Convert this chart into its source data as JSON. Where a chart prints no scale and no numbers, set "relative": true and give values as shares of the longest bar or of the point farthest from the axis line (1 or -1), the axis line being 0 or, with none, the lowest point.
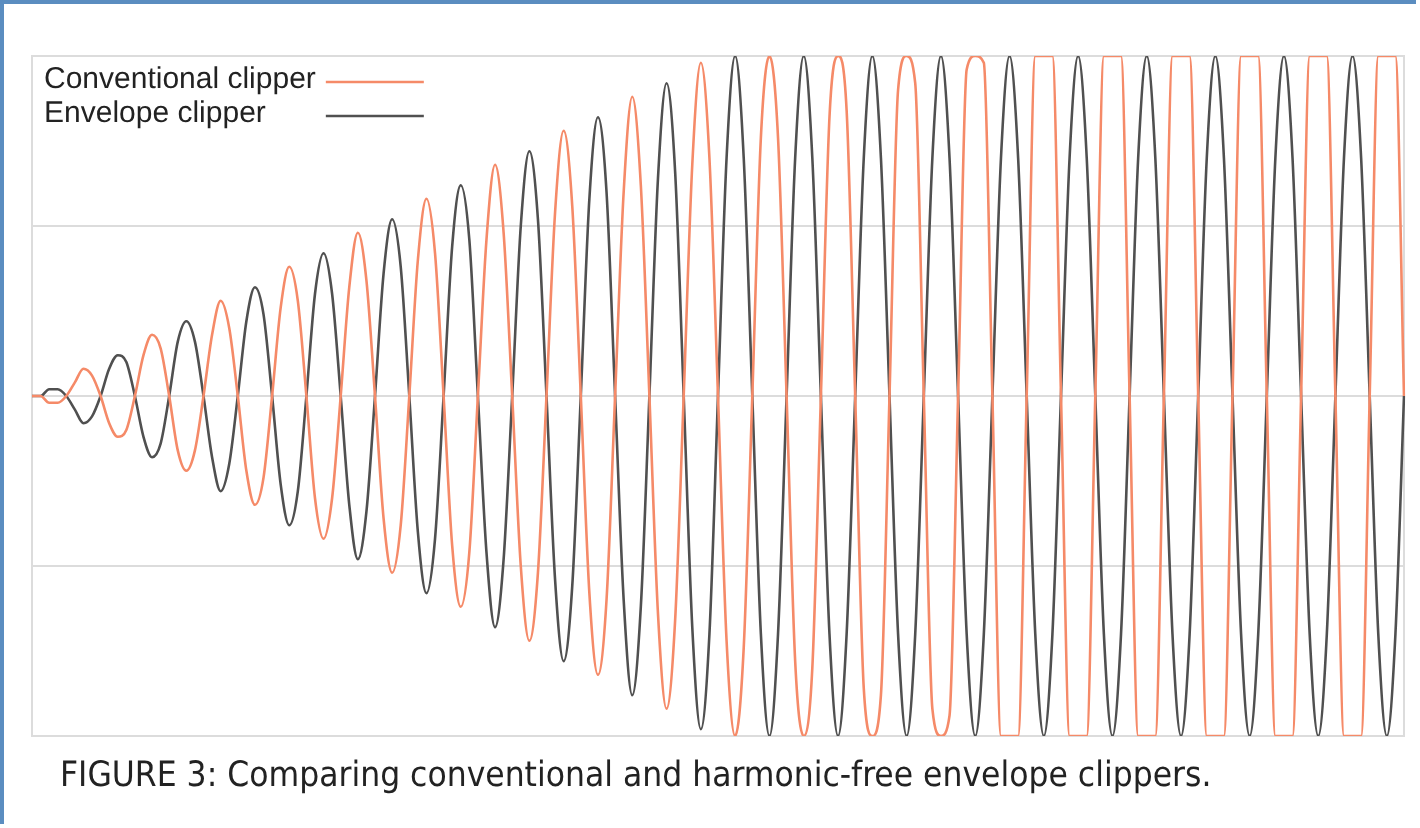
{
  "chart_data": {
    "type": "line",
    "relative": true,
    "grid": "y",
    "legend": "top left",
    "tick_labels": false,
    "marker": "none",
    "line_style": "solid",
    "annotations": [
      "FIGURE 3: Comparing conventional and harmonic-free envelope clippers."
    ],
    "categories": [
      null,
      null,
      null,
      null,
      null,
      null,
      null,
      null,
      null,
      null,
      null,
      null,
      null,
      null,
      null,
      null,
      null,
      null,
      null,
      null,
      null,
      null,
      null,
      null,
      null,
      null,
      null,
      null,
      null,
      null,
      null,
      null,
      null,
      null,
      null,
      null,
      null,
      null,
      null,
      null,
      null,
      null,
      null,
      null,
      null,
      null,
      null,
      null,
      null,
      null,
      null,
      null,
      null,
      null,
      null,
      null,
      null,
      null,
      null,
      null,
      null,
      null,
      null,
      null,
      null,
      null,
      null,
      null,
      null,
      null,
      null,
      null,
      null,
      null,
      null,
      null,
      null,
      null,
      null,
      null,
      null,
      null,
      null,
      null,
      null,
      null,
      null,
      null,
      null,
      null,
      null,
      null,
      null,
      null,
      null,
      null,
      null,
      null,
      null,
      null,
      null,
      null,
      null,
      null,
      null,
      null,
      null,
      null,
      null,
      null,
      null,
      null,
      null,
      null,
      null,
      null,
      null,
      null,
      null,
      null,
      null,
      null,
      null,
      null,
      null,
      null,
      null,
      null,
      null,
      null,
      null,
      null,
      null,
      null,
      null,
      null,
      null,
      null,
      null,
      null,
      null,
      null,
      null,
      null,
      null,
      null,
      null,
      null,
      null,
      null,
      null,
      null,
      null,
      null,
      null,
      null,
      null,
      null,
      null,
      null,
      null
    ],
    "series": [
      {
        "name": "Conventional clipper",
        "color": "#f58a68",
        "values": [
          0.5,
          0.5,
          0.49,
          0.49,
          0.5,
          0.52,
          0.54,
          0.53,
          0.5,
          0.46,
          0.44,
          0.45,
          0.5,
          0.56,
          0.59,
          0.57,
          0.5,
          0.42,
          0.39,
          0.42,
          0.5,
          0.59,
          0.64,
          0.6,
          0.5,
          0.39,
          0.34,
          0.38,
          0.5,
          0.63,
          0.69,
          0.64,
          0.5,
          0.35,
          0.29,
          0.35,
          0.5,
          0.66,
          0.74,
          0.67,
          0.5,
          0.32,
          0.24,
          0.31,
          0.5,
          0.7,
          0.79,
          0.71,
          0.5,
          0.28,
          0.19,
          0.27,
          0.5,
          0.73,
          0.84,
          0.74,
          0.5,
          0.25,
          0.14,
          0.24,
          0.5,
          0.77,
          0.89,
          0.78,
          0.5,
          0.21,
          0.09,
          0.2,
          0.5,
          0.8,
          0.94,
          0.81,
          0.5,
          0.18,
          0.04,
          0.17,
          0.5,
          0.84,
          0.99,
          0.85,
          0.5,
          0.14,
          0,
          0.13,
          0.5,
          0.88,
          1,
          0.88,
          0.5,
          0.11,
          0,
          0.1,
          0.5,
          0.91,
          1,
          0.92,
          0.5,
          0.07,
          0,
          0.06,
          0.5,
          0.95,
          1,
          0.96,
          0.5,
          0.04,
          0,
          0.03,
          0.5,
          0.98,
          1,
          0.99,
          0.5,
          0,
          0,
          0,
          0.5,
          1,
          1,
          1,
          0.5,
          0,
          0,
          0,
          0.5,
          1,
          1,
          1,
          0.5,
          0,
          0,
          0,
          0.5,
          1,
          1,
          1,
          0.5,
          0,
          0,
          0,
          0.5,
          1,
          1,
          1,
          0.5,
          0,
          0,
          0,
          0.5,
          1,
          1,
          1,
          0.5,
          0,
          0,
          0,
          0.5,
          1,
          1,
          1,
          0.5
        ]
      },
      {
        "name": "Envelope clipper",
        "color": "#505050",
        "values": [
          0.5,
          0.5,
          0.51,
          0.51,
          0.5,
          0.48,
          0.46,
          0.47,
          0.5,
          0.54,
          0.56,
          0.55,
          0.5,
          0.44,
          0.41,
          0.43,
          0.5,
          0.58,
          0.61,
          0.58,
          0.5,
          0.41,
          0.36,
          0.4,
          0.5,
          0.61,
          0.66,
          0.62,
          0.5,
          0.37,
          0.31,
          0.36,
          0.5,
          0.65,
          0.71,
          0.65,
          0.5,
          0.34,
          0.26,
          0.33,
          0.5,
          0.68,
          0.76,
          0.69,
          0.5,
          0.3,
          0.21,
          0.29,
          0.5,
          0.72,
          0.81,
          0.73,
          0.5,
          0.27,
          0.16,
          0.26,
          0.5,
          0.75,
          0.86,
          0.76,
          0.5,
          0.23,
          0.11,
          0.22,
          0.5,
          0.79,
          0.91,
          0.8,
          0.5,
          0.2,
          0.06,
          0.19,
          0.5,
          0.82,
          0.96,
          0.83,
          0.5,
          0.16,
          0.01,
          0.15,
          0.5,
          0.85,
          1,
          0.85,
          0.5,
          0.15,
          0,
          0.15,
          0.5,
          0.85,
          1,
          0.85,
          0.5,
          0.15,
          0,
          0.15,
          0.5,
          0.85,
          1,
          0.85,
          0.5,
          0.15,
          0,
          0.15,
          0.5,
          0.85,
          1,
          0.85,
          0.5,
          0.15,
          0,
          0.15,
          0.5,
          0.85,
          1,
          0.85,
          0.5,
          0.15,
          0,
          0.15,
          0.5,
          0.85,
          1,
          0.85,
          0.5,
          0.15,
          0,
          0.15,
          0.5,
          0.85,
          1,
          0.85,
          0.5,
          0.15,
          0,
          0.15,
          0.5,
          0.85,
          1,
          0.85,
          0.5,
          0.15,
          0,
          0.15,
          0.5,
          0.85,
          1,
          0.85,
          0.5,
          0.15,
          0,
          0.15,
          0.5,
          0.85,
          1,
          0.85,
          0.5,
          0.15,
          0,
          0.15,
          0.5
        ]
      }
    ]
  }
}
